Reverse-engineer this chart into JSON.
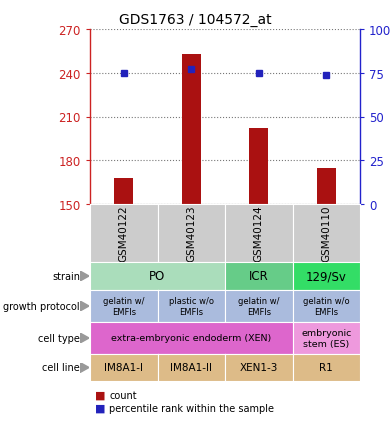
{
  "title": "GDS1763 / 104572_at",
  "samples": [
    "GSM40122",
    "GSM40123",
    "GSM40124",
    "GSM40110"
  ],
  "counts": [
    168,
    253,
    202,
    175
  ],
  "percentile_ranks": [
    75,
    77,
    75,
    74
  ],
  "ymin": 150,
  "ymax": 270,
  "yticks": [
    150,
    180,
    210,
    240,
    270
  ],
  "ytick_labels_left": [
    "150",
    "180",
    "210",
    "240",
    "270"
  ],
  "ytick_labels_right": [
    "0",
    "25",
    "50",
    "75",
    "100%"
  ],
  "bar_color": "#aa1111",
  "dot_color": "#2222bb",
  "gsm_bg_color": "#cccccc",
  "left_axis_color": "#cc2222",
  "right_axis_color": "#2222cc",
  "dotted_line_color": "#777777",
  "strain_spans": [
    [
      0,
      1,
      "PO",
      "#aaddbb"
    ],
    [
      2,
      2,
      "ICR",
      "#66cc88"
    ],
    [
      3,
      3,
      "129/Sv",
      "#33dd66"
    ]
  ],
  "growth_cells": [
    [
      "gelatin w/\nEMFls",
      "#aabbdd"
    ],
    [
      "plastic w/o\nEMFls",
      "#aabbdd"
    ],
    [
      "gelatin w/\nEMFls",
      "#aabbdd"
    ],
    [
      "gelatin w/o\nEMFls",
      "#aabbdd"
    ]
  ],
  "cell_type_spans": [
    [
      0,
      2,
      "extra-embryonic endoderm (XEN)",
      "#dd66cc"
    ],
    [
      3,
      3,
      "embryonic\nstem (ES)",
      "#ee99dd"
    ]
  ],
  "cell_line_cells": [
    [
      "IM8A1-I",
      "#ddbb88"
    ],
    [
      "IM8A1-II",
      "#ddbb88"
    ],
    [
      "XEN1-3",
      "#ddbb88"
    ],
    [
      "R1",
      "#ddbb88"
    ]
  ],
  "row_labels": [
    "strain",
    "growth protocol",
    "cell type",
    "cell line"
  ],
  "legend_count_color": "#aa1111",
  "legend_pct_color": "#2222bb"
}
